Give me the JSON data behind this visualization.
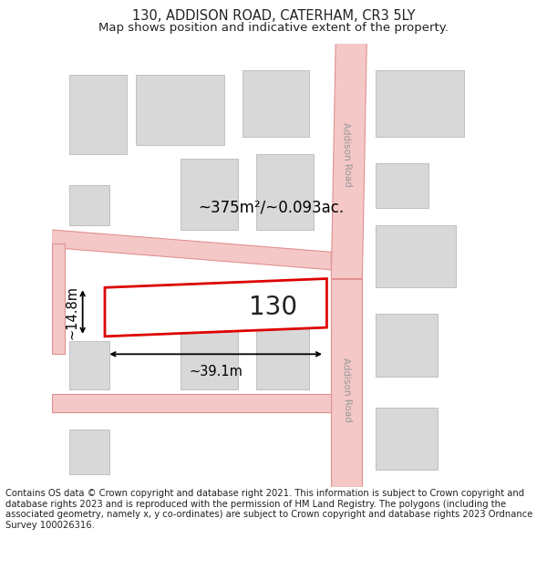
{
  "title": "130, ADDISON ROAD, CATERHAM, CR3 5LY",
  "subtitle": "Map shows position and indicative extent of the property.",
  "footer": "Contains OS data © Crown copyright and database right 2021. This information is subject to Crown copyright and database rights 2023 and is reproduced with the permission of HM Land Registry. The polygons (including the associated geometry, namely x, y co-ordinates) are subject to Crown copyright and database rights 2023 Ordnance Survey 100026316.",
  "background_color": "#ffffff",
  "map_background": "#f9f5f5",
  "road_fill": "#f5c8c8",
  "road_edge": "#e09090",
  "building_fill": "#d8d8d8",
  "building_edge": "#c0c0c0",
  "highlight_color": "#dd0000",
  "text_color": "#222222",
  "road_label_color": "#999999",
  "area_label": "~375m²/~0.093ac.",
  "width_label": "~39.1m",
  "height_label": "~14.8m",
  "number_label": "130",
  "title_fontsize": 10.5,
  "subtitle_fontsize": 9.5,
  "footer_fontsize": 7.2,
  "area_fontsize": 12,
  "dim_fontsize": 10.5,
  "num_fontsize": 20,
  "road_label_fontsize": 7.5
}
